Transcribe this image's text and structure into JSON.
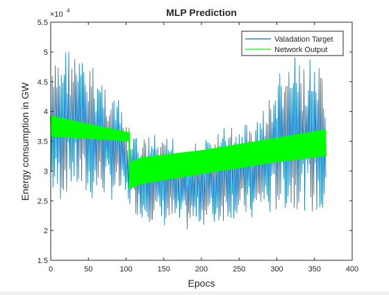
{
  "chart_data": {
    "type": "line",
    "title": "MLP Prediction",
    "xlabel": "Epocs",
    "ylabel": "Energy consumption in GW",
    "exponent_label": "×10",
    "exponent_power": "4",
    "xlim": [
      0,
      400
    ],
    "ylim": [
      15000,
      55000
    ],
    "xticks": [
      0,
      50,
      100,
      150,
      200,
      250,
      300,
      350,
      400
    ],
    "xtick_labels": [
      "0",
      "50",
      "100",
      "150",
      "200",
      "250",
      "300",
      "350",
      "400"
    ],
    "yticks": [
      15000,
      20000,
      25000,
      30000,
      35000,
      40000,
      45000,
      50000,
      55000
    ],
    "ytick_labels": [
      "1.5",
      "2",
      "2.5",
      "3",
      "3.5",
      "4",
      "4.5",
      "5",
      "5.5"
    ],
    "grid": false,
    "legend_position": "top-right",
    "series": [
      {
        "name": "Valadation Target",
        "color": "#0072BD",
        "envelope": {
          "x": [
            0,
            10,
            20,
            30,
            40,
            50,
            60,
            70,
            80,
            90,
            100,
            110,
            120,
            130,
            140,
            150,
            160,
            170,
            180,
            190,
            200,
            210,
            220,
            230,
            240,
            250,
            260,
            270,
            280,
            290,
            300,
            310,
            320,
            330,
            340,
            350,
            360,
            365
          ],
          "upper": [
            46000,
            50000,
            51500,
            50500,
            49000,
            48000,
            47500,
            46000,
            44000,
            42000,
            38000,
            36500,
            35000,
            36500,
            36000,
            35000,
            36500,
            34500,
            35000,
            35000,
            34500,
            36000,
            36500,
            37500,
            38000,
            37500,
            38500,
            38000,
            40500,
            42500,
            46000,
            48000,
            49500,
            48500,
            48500,
            49500,
            46000,
            42000
          ],
          "lower": [
            26000,
            24000,
            26000,
            27000,
            25500,
            24500,
            25000,
            25500,
            25000,
            25500,
            24500,
            23000,
            22000,
            21500,
            21000,
            20500,
            20500,
            20000,
            19800,
            20200,
            21000,
            20500,
            20500,
            21500,
            22000,
            21500,
            22000,
            21000,
            23000,
            22000,
            23000,
            23500,
            22500,
            24000,
            23000,
            22500,
            21500,
            22500
          ]
        }
      },
      {
        "name": "Network Output",
        "color": "#00FF00",
        "envelope": {
          "x": [
            0,
            104,
            105,
            120,
            200,
            300,
            365
          ],
          "upper": [
            39300,
            36500,
            31500,
            32300,
            33500,
            35600,
            37000
          ],
          "lower": [
            35800,
            35000,
            27000,
            27800,
            29500,
            31500,
            32500
          ]
        }
      }
    ]
  }
}
